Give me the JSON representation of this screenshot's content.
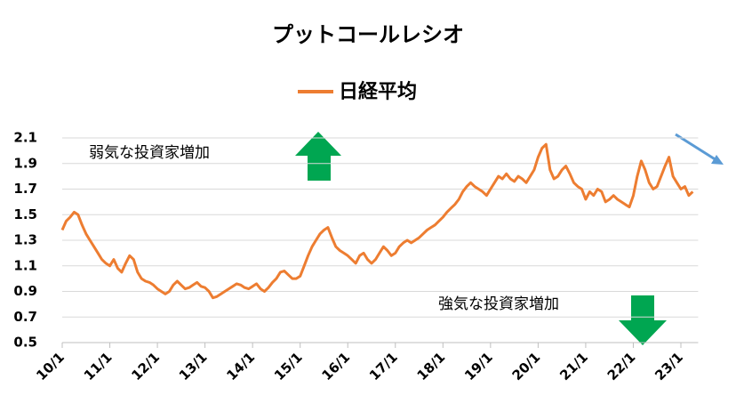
{
  "chart_data": {
    "type": "line",
    "title": "プットコールレシオ",
    "annotations": [
      "弱気な投資家増加",
      "強気な投資家増加"
    ],
    "categories": [
      "10/1",
      null,
      null,
      null,
      null,
      null,
      null,
      null,
      null,
      null,
      null,
      null,
      "11/1",
      null,
      null,
      null,
      null,
      null,
      null,
      null,
      null,
      null,
      null,
      null,
      "12/1",
      null,
      null,
      null,
      null,
      null,
      null,
      null,
      null,
      null,
      null,
      null,
      "13/1",
      null,
      null,
      null,
      null,
      null,
      null,
      null,
      null,
      null,
      null,
      null,
      "14/1",
      null,
      null,
      null,
      null,
      null,
      null,
      null,
      null,
      null,
      null,
      null,
      "15/1",
      null,
      null,
      null,
      null,
      null,
      null,
      null,
      null,
      null,
      null,
      null,
      "16/1",
      null,
      null,
      null,
      null,
      null,
      null,
      null,
      null,
      null,
      null,
      null,
      "17/1",
      null,
      null,
      null,
      null,
      null,
      null,
      null,
      null,
      null,
      null,
      null,
      "18/1",
      null,
      null,
      null,
      null,
      null,
      null,
      null,
      null,
      null,
      null,
      null,
      "19/1",
      null,
      null,
      null,
      null,
      null,
      null,
      null,
      null,
      null,
      null,
      null,
      "20/1",
      null,
      null,
      null,
      null,
      null,
      null,
      null,
      null,
      null,
      null,
      null,
      "21/1",
      null,
      null,
      null,
      null,
      null,
      null,
      null,
      null,
      null,
      null,
      null,
      "22/1",
      null,
      null,
      null,
      null,
      null,
      null,
      null,
      null,
      null,
      null,
      null,
      "23/1",
      null,
      null,
      null
    ],
    "series": [
      {
        "name": "日経平均",
        "color": "#ed7d31",
        "values": [
          1.38,
          1.45,
          1.48,
          1.52,
          1.5,
          1.42,
          1.35,
          1.3,
          1.25,
          1.2,
          1.15,
          1.12,
          1.1,
          1.15,
          1.08,
          1.05,
          1.12,
          1.18,
          1.15,
          1.05,
          1.0,
          0.98,
          0.97,
          0.95,
          0.92,
          0.9,
          0.88,
          0.9,
          0.95,
          0.98,
          0.95,
          0.92,
          0.93,
          0.95,
          0.97,
          0.94,
          0.93,
          0.9,
          0.85,
          0.86,
          0.88,
          0.9,
          0.92,
          0.94,
          0.96,
          0.95,
          0.93,
          0.92,
          0.94,
          0.96,
          0.92,
          0.9,
          0.93,
          0.97,
          1.0,
          1.05,
          1.06,
          1.03,
          1.0,
          1.0,
          1.02,
          1.1,
          1.18,
          1.25,
          1.3,
          1.35,
          1.38,
          1.4,
          1.32,
          1.25,
          1.22,
          1.2,
          1.18,
          1.15,
          1.12,
          1.18,
          1.2,
          1.15,
          1.12,
          1.15,
          1.2,
          1.25,
          1.22,
          1.18,
          1.2,
          1.25,
          1.28,
          1.3,
          1.28,
          1.3,
          1.32,
          1.35,
          1.38,
          1.4,
          1.42,
          1.45,
          1.48,
          1.52,
          1.55,
          1.58,
          1.62,
          1.68,
          1.72,
          1.75,
          1.72,
          1.7,
          1.68,
          1.65,
          1.7,
          1.75,
          1.8,
          1.78,
          1.82,
          1.78,
          1.76,
          1.8,
          1.78,
          1.75,
          1.8,
          1.85,
          1.95,
          2.02,
          2.05,
          1.85,
          1.78,
          1.8,
          1.85,
          1.88,
          1.82,
          1.75,
          1.72,
          1.7,
          1.62,
          1.68,
          1.65,
          1.7,
          1.68,
          1.6,
          1.62,
          1.65,
          1.62,
          1.6,
          1.58,
          1.56,
          1.65,
          1.8,
          1.92,
          1.85,
          1.75,
          1.7,
          1.72,
          1.8,
          1.88,
          1.95,
          1.8,
          1.75,
          1.7,
          1.72,
          1.65,
          1.68
        ]
      }
    ],
    "ylim": [
      0.5,
      2.1
    ],
    "yticks": [
      0.5,
      0.7,
      0.9,
      1.1,
      1.3,
      1.5,
      1.7,
      1.9,
      2.1
    ],
    "grid": true,
    "legend": "top"
  }
}
